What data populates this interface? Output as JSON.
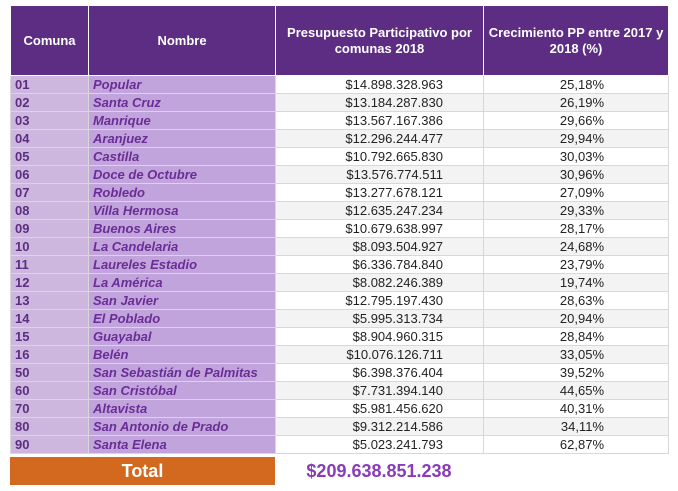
{
  "table": {
    "header": [
      "Comuna",
      "Nombre",
      "Presupuesto Participativo por comunas 2018",
      "Crecimiento PP entre 2017 y 2018 (%)"
    ],
    "rows": [
      [
        "01",
        "Popular",
        "$14.898.328.963",
        "25,18%"
      ],
      [
        "02",
        "Santa Cruz",
        "$13.184.287.830",
        "26,19%"
      ],
      [
        "03",
        "Manrique",
        "$13.567.167.386",
        "29,66%"
      ],
      [
        "04",
        "Aranjuez",
        "$12.296.244.477",
        "29,94%"
      ],
      [
        "05",
        "Castilla",
        "$10.792.665.830",
        "30,03%"
      ],
      [
        "06",
        "Doce de Octubre",
        "$13.576.774.511",
        "30,96%"
      ],
      [
        "07",
        "Robledo",
        "$13.277.678.121",
        "27,09%"
      ],
      [
        "08",
        "Villa Hermosa",
        "$12.635.247.234",
        "29,33%"
      ],
      [
        "09",
        "Buenos Aires",
        "$10.679.638.997",
        "28,17%"
      ],
      [
        "10",
        "La Candelaria",
        "$8.093.504.927",
        "24,68%"
      ],
      [
        "11",
        "Laureles Estadio",
        "$6.336.784.840",
        "23,79%"
      ],
      [
        "12",
        "La América",
        "$8.082.246.389",
        "19,74%"
      ],
      [
        "13",
        "San Javier",
        "$12.795.197.430",
        "28,63%"
      ],
      [
        "14",
        "El Poblado",
        "$5.995.313.734",
        "20,94%"
      ],
      [
        "15",
        "Guayabal",
        "$8.904.960.315",
        "28,84%"
      ],
      [
        "16",
        "Belén",
        "$10.076.126.711",
        "33,05%"
      ],
      [
        "50",
        "San Sebastián de Palmitas",
        "$6.398.376.404",
        "39,52%"
      ],
      [
        "60",
        "San Cristóbal",
        "$7.731.394.140",
        "44,65%"
      ],
      [
        "70",
        "Altavista",
        "$5.981.456.620",
        "40,31%"
      ],
      [
        "80",
        "San Antonio de Prado",
        "$9.312.214.586",
        "34,11%"
      ],
      [
        "90",
        "Santa Elena",
        "$5.023.241.793",
        "62,87%"
      ]
    ],
    "total": {
      "label": "Total",
      "value": "$209.638.851.238"
    }
  }
}
